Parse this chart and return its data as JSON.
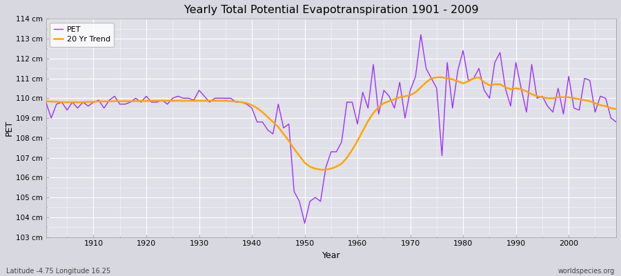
{
  "title": "Yearly Total Potential Evapotranspiration 1901 - 2009",
  "xlabel": "Year",
  "ylabel": "PET",
  "subtitle_left": "Latitude -4.75 Longitude 16.25",
  "subtitle_right": "worldspecies.org",
  "pet_color": "#9B30FF",
  "trend_color": "#FFA500",
  "plot_bg_color": "#E0E0E8",
  "fig_bg_color": "#D8D8E0",
  "ylim": [
    103,
    114
  ],
  "xlim": [
    1901,
    2009
  ],
  "years": [
    1901,
    1902,
    1903,
    1904,
    1905,
    1906,
    1907,
    1908,
    1909,
    1910,
    1911,
    1912,
    1913,
    1914,
    1915,
    1916,
    1917,
    1918,
    1919,
    1920,
    1921,
    1922,
    1923,
    1924,
    1925,
    1926,
    1927,
    1928,
    1929,
    1930,
    1931,
    1932,
    1933,
    1934,
    1935,
    1936,
    1937,
    1938,
    1939,
    1940,
    1941,
    1942,
    1943,
    1944,
    1945,
    1946,
    1947,
    1948,
    1949,
    1950,
    1951,
    1952,
    1953,
    1954,
    1955,
    1956,
    1957,
    1958,
    1959,
    1960,
    1961,
    1962,
    1963,
    1964,
    1965,
    1966,
    1967,
    1968,
    1969,
    1970,
    1971,
    1972,
    1973,
    1974,
    1975,
    1976,
    1977,
    1978,
    1979,
    1980,
    1981,
    1982,
    1983,
    1984,
    1985,
    1986,
    1987,
    1988,
    1989,
    1990,
    1991,
    1992,
    1993,
    1994,
    1995,
    1996,
    1997,
    1998,
    1999,
    2000,
    2001,
    2002,
    2003,
    2004,
    2005,
    2006,
    2007,
    2008,
    2009
  ],
  "pet_values": [
    109.8,
    109.0,
    109.7,
    109.8,
    109.4,
    109.8,
    109.5,
    109.8,
    109.6,
    109.8,
    109.9,
    109.5,
    109.9,
    110.1,
    109.7,
    109.7,
    109.8,
    110.0,
    109.8,
    110.1,
    109.8,
    109.8,
    109.9,
    109.7,
    110.0,
    110.1,
    110.0,
    110.0,
    109.9,
    110.4,
    110.1,
    109.8,
    110.0,
    110.0,
    110.0,
    110.0,
    109.8,
    109.8,
    109.7,
    109.5,
    108.8,
    108.8,
    108.4,
    108.2,
    109.7,
    108.5,
    108.7,
    105.3,
    104.8,
    103.7,
    104.8,
    105.0,
    104.8,
    106.5,
    107.3,
    107.3,
    107.8,
    109.8,
    109.8,
    108.7,
    110.3,
    109.5,
    111.7,
    109.2,
    110.4,
    110.1,
    109.5,
    110.8,
    109.0,
    110.4,
    111.1,
    113.2,
    111.5,
    111.0,
    110.5,
    107.1,
    111.8,
    109.5,
    111.4,
    112.4,
    110.9,
    111.0,
    111.5,
    110.4,
    110.0,
    111.8,
    112.3,
    110.5,
    109.6,
    111.8,
    110.5,
    109.3,
    111.7,
    110.0,
    110.1,
    109.6,
    109.3,
    110.5,
    109.2,
    111.1,
    109.5,
    109.4,
    111.0,
    110.9,
    109.3,
    110.1,
    110.0,
    109.0,
    108.8
  ],
  "trend_values": [
    109.85,
    109.83,
    109.82,
    109.8,
    109.8,
    109.8,
    109.8,
    109.8,
    109.82,
    109.82,
    109.84,
    109.84,
    109.84,
    109.85,
    109.85,
    109.85,
    109.85,
    109.85,
    109.86,
    109.86,
    109.87,
    109.87,
    109.87,
    109.87,
    109.87,
    109.87,
    109.87,
    109.87,
    109.87,
    109.87,
    109.87,
    109.87,
    109.87,
    109.87,
    109.87,
    109.85,
    109.83,
    109.8,
    109.75,
    109.65,
    109.5,
    109.3,
    109.05,
    108.8,
    108.55,
    108.2,
    107.85,
    107.45,
    107.1,
    106.75,
    106.55,
    106.45,
    106.4,
    106.4,
    106.45,
    106.55,
    106.7,
    107.0,
    107.4,
    107.85,
    108.35,
    108.85,
    109.25,
    109.55,
    109.75,
    109.85,
    109.95,
    110.05,
    110.1,
    110.15,
    110.3,
    110.55,
    110.8,
    111.0,
    111.05,
    111.05,
    111.0,
    110.95,
    110.85,
    110.75,
    110.85,
    111.0,
    111.05,
    110.8,
    110.65,
    110.7,
    110.7,
    110.55,
    110.45,
    110.5,
    110.45,
    110.35,
    110.2,
    110.1,
    110.05,
    110.0,
    110.0,
    110.05,
    110.05,
    110.05,
    110.0,
    109.95,
    109.9,
    109.85,
    109.75,
    109.65,
    109.6,
    109.5,
    109.45
  ]
}
